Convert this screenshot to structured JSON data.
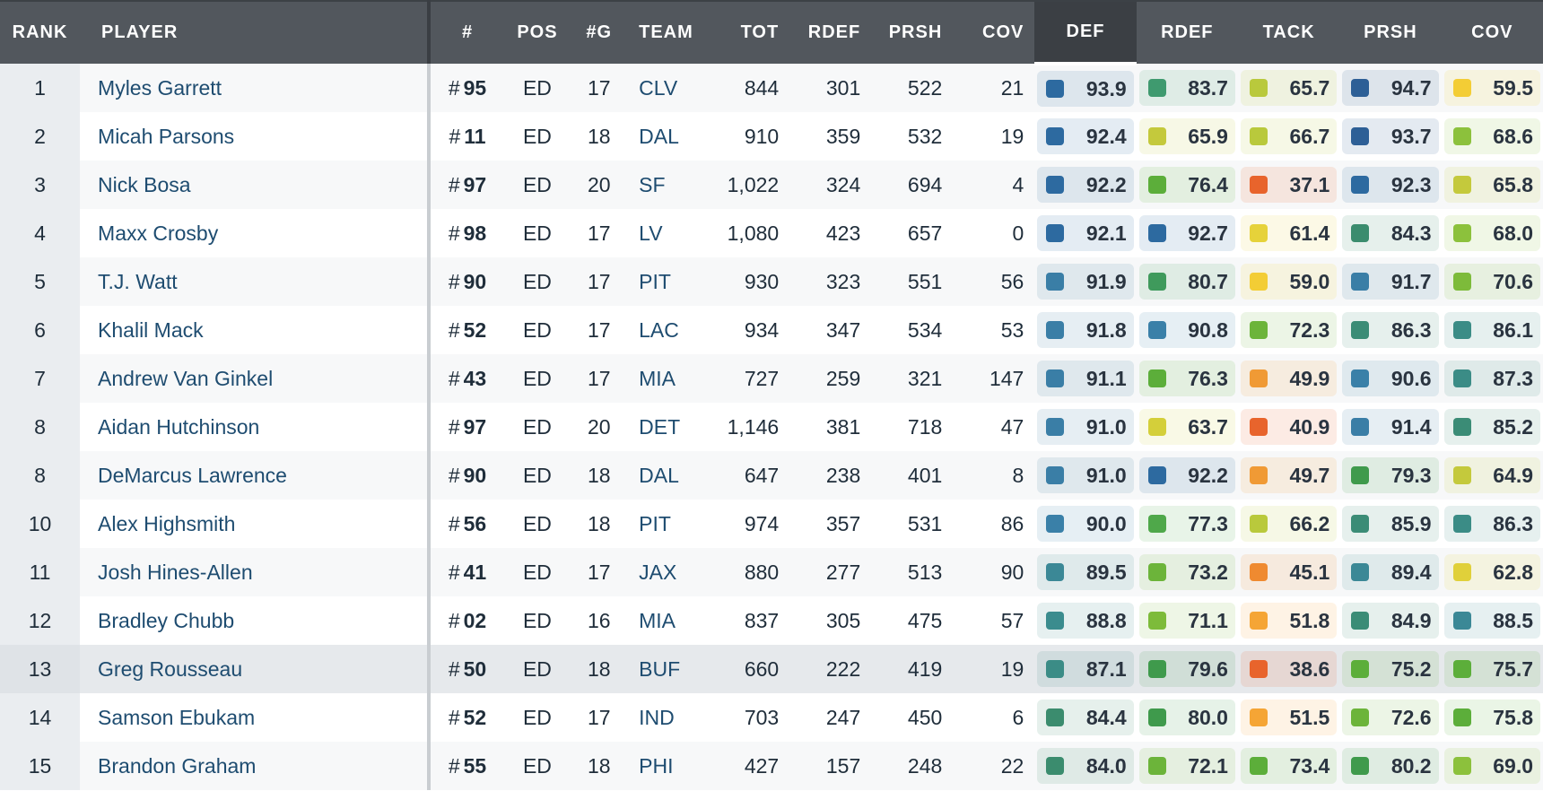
{
  "headers": {
    "rank": "RANK",
    "player": "PLAYER",
    "jersey": "#",
    "pos": "POS",
    "games": "#G",
    "team": "TEAM",
    "tot": "TOT",
    "rdef_snaps": "RDEF",
    "prsh_snaps": "PRSH",
    "cov_snaps": "COV",
    "def_grade": "DEF",
    "rdef_grade": "RDEF",
    "tack_grade": "TACK",
    "prsh_grade": "PRSH",
    "cov_grade": "COV"
  },
  "active_sort_column": "DEF",
  "jersey_prefix": "#",
  "grade_colors": {
    "elite_dark_blue": "#2d5f96",
    "high_blue": "#3a7ea6",
    "teal": "#3b8c86",
    "dark_green": "#3f9a5c",
    "green": "#5cae3a",
    "light_green": "#8cc13c",
    "yellow_green": "#c4c93c",
    "yellow": "#f3cd35",
    "orange": "#f09a35",
    "red_orange": "#e8642c"
  },
  "rows": [
    {
      "rank": "1",
      "player": "Myles Garrett",
      "jersey": "95",
      "pos": "ED",
      "games": "17",
      "team": "CLV",
      "tot": "844",
      "rdef": "301",
      "prsh": "522",
      "cov": "21",
      "grades": [
        "93.9",
        "83.7",
        "65.7",
        "94.7",
        "59.5"
      ],
      "grade_colors": [
        "#2d6aa0",
        "#3f9a6f",
        "#b9c93c",
        "#2d5f96",
        "#f3cd35"
      ]
    },
    {
      "rank": "2",
      "player": "Micah Parsons",
      "jersey": "11",
      "pos": "ED",
      "games": "18",
      "team": "DAL",
      "tot": "910",
      "rdef": "359",
      "prsh": "532",
      "cov": "19",
      "grades": [
        "92.4",
        "65.9",
        "66.7",
        "93.7",
        "68.6"
      ],
      "grade_colors": [
        "#2d6aa0",
        "#c4c93c",
        "#b9c93c",
        "#2d5f96",
        "#8cc13c"
      ]
    },
    {
      "rank": "3",
      "player": "Nick Bosa",
      "jersey": "97",
      "pos": "ED",
      "games": "20",
      "team": "SF",
      "tot": "1,022",
      "rdef": "324",
      "prsh": "694",
      "cov": "4",
      "grades": [
        "92.2",
        "76.4",
        "37.1",
        "92.3",
        "65.8"
      ],
      "grade_colors": [
        "#2d6aa0",
        "#5cae3a",
        "#e8642c",
        "#2d6aa0",
        "#c4c93c"
      ]
    },
    {
      "rank": "4",
      "player": "Maxx Crosby",
      "jersey": "98",
      "pos": "ED",
      "games": "17",
      "team": "LV",
      "tot": "1,080",
      "rdef": "423",
      "prsh": "657",
      "cov": "0",
      "grades": [
        "92.1",
        "92.7",
        "61.4",
        "84.3",
        "68.0"
      ],
      "grade_colors": [
        "#2d6aa0",
        "#2d6aa0",
        "#e6d23a",
        "#3b8c6e",
        "#8cc13c"
      ]
    },
    {
      "rank": "5",
      "player": "T.J. Watt",
      "jersey": "90",
      "pos": "ED",
      "games": "17",
      "team": "PIT",
      "tot": "930",
      "rdef": "323",
      "prsh": "551",
      "cov": "56",
      "grades": [
        "91.9",
        "80.7",
        "59.0",
        "91.7",
        "70.6"
      ],
      "grade_colors": [
        "#3a7ea6",
        "#3f9a5c",
        "#f3cd35",
        "#3a7ea6",
        "#7dbb3a"
      ]
    },
    {
      "rank": "6",
      "player": "Khalil Mack",
      "jersey": "52",
      "pos": "ED",
      "games": "17",
      "team": "LAC",
      "tot": "934",
      "rdef": "347",
      "prsh": "534",
      "cov": "53",
      "grades": [
        "91.8",
        "90.8",
        "72.3",
        "86.3",
        "86.1"
      ],
      "grade_colors": [
        "#3a7ea6",
        "#3a80a8",
        "#6cb43a",
        "#3b8c76",
        "#3b8c86"
      ]
    },
    {
      "rank": "7",
      "player": "Andrew Van Ginkel",
      "jersey": "43",
      "pos": "ED",
      "games": "17",
      "team": "MIA",
      "tot": "727",
      "rdef": "259",
      "prsh": "321",
      "cov": "147",
      "grades": [
        "91.1",
        "76.3",
        "49.9",
        "90.6",
        "87.3"
      ],
      "grade_colors": [
        "#3a7ea6",
        "#5cae3a",
        "#f09a35",
        "#3a80a8",
        "#3b8c86"
      ]
    },
    {
      "rank": "8",
      "player": "Aidan Hutchinson",
      "jersey": "97",
      "pos": "ED",
      "games": "20",
      "team": "DET",
      "tot": "1,146",
      "rdef": "381",
      "prsh": "718",
      "cov": "47",
      "grades": [
        "91.0",
        "63.7",
        "40.9",
        "91.4",
        "85.2"
      ],
      "grade_colors": [
        "#3a7ea6",
        "#d4cf3a",
        "#e8642c",
        "#3a7ea6",
        "#3b8c76"
      ]
    },
    {
      "rank": "8",
      "player": "DeMarcus Lawrence",
      "jersey": "90",
      "pos": "ED",
      "games": "18",
      "team": "DAL",
      "tot": "647",
      "rdef": "238",
      "prsh": "401",
      "cov": "8",
      "grades": [
        "91.0",
        "92.2",
        "49.7",
        "79.3",
        "64.9"
      ],
      "grade_colors": [
        "#3a7ea6",
        "#2d6aa0",
        "#f09a35",
        "#3f9a4c",
        "#c4c93c"
      ]
    },
    {
      "rank": "10",
      "player": "Alex Highsmith",
      "jersey": "56",
      "pos": "ED",
      "games": "18",
      "team": "PIT",
      "tot": "974",
      "rdef": "357",
      "prsh": "531",
      "cov": "86",
      "grades": [
        "90.0",
        "77.3",
        "66.2",
        "85.9",
        "86.3"
      ],
      "grade_colors": [
        "#3a80a8",
        "#4fa84a",
        "#b9c93c",
        "#3b8c76",
        "#3b8c86"
      ]
    },
    {
      "rank": "11",
      "player": "Josh Hines-Allen",
      "jersey": "41",
      "pos": "ED",
      "games": "17",
      "team": "JAX",
      "tot": "880",
      "rdef": "277",
      "prsh": "513",
      "cov": "90",
      "grades": [
        "89.5",
        "73.2",
        "45.1",
        "89.4",
        "62.8"
      ],
      "grade_colors": [
        "#3b8896",
        "#6cb43a",
        "#ef8a30",
        "#3b8896",
        "#e0d03a"
      ]
    },
    {
      "rank": "12",
      "player": "Bradley Chubb",
      "jersey": "02",
      "pos": "ED",
      "games": "16",
      "team": "MIA",
      "tot": "837",
      "rdef": "305",
      "prsh": "475",
      "cov": "57",
      "grades": [
        "88.8",
        "71.1",
        "51.8",
        "84.9",
        "88.5"
      ],
      "grade_colors": [
        "#3b8c8e",
        "#7dbb3a",
        "#f5a535",
        "#3b8c76",
        "#3b8896"
      ]
    },
    {
      "rank": "13",
      "player": "Greg Rousseau",
      "jersey": "50",
      "pos": "ED",
      "games": "18",
      "team": "BUF",
      "tot": "660",
      "rdef": "222",
      "prsh": "419",
      "cov": "19",
      "grades": [
        "87.1",
        "79.6",
        "38.6",
        "75.2",
        "75.7"
      ],
      "grade_colors": [
        "#3b8c86",
        "#3f9a4c",
        "#e8642c",
        "#5cae3a",
        "#5cae3a"
      ]
    },
    {
      "rank": "14",
      "player": "Samson Ebukam",
      "jersey": "52",
      "pos": "ED",
      "games": "17",
      "team": "IND",
      "tot": "703",
      "rdef": "247",
      "prsh": "450",
      "cov": "6",
      "grades": [
        "84.4",
        "80.0",
        "51.5",
        "72.6",
        "75.8"
      ],
      "grade_colors": [
        "#3b8c6e",
        "#3f9a4c",
        "#f5a535",
        "#6cb43a",
        "#5cae3a"
      ]
    },
    {
      "rank": "15",
      "player": "Brandon Graham",
      "jersey": "55",
      "pos": "ED",
      "games": "18",
      "team": "PHI",
      "tot": "427",
      "rdef": "157",
      "prsh": "248",
      "cov": "22",
      "grades": [
        "84.0",
        "72.1",
        "73.4",
        "80.2",
        "69.0"
      ],
      "grade_colors": [
        "#3b8c6e",
        "#6cb43a",
        "#5cae3a",
        "#3f9a4c",
        "#8cc13c"
      ]
    }
  ]
}
